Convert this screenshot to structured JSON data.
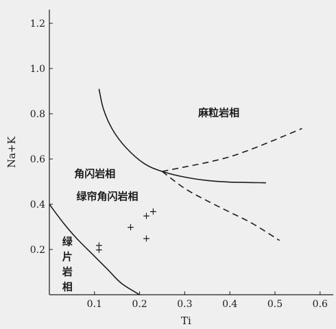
{
  "chart_data": {
    "type": "line",
    "xlabel": "Ti",
    "ylabel": "Na+K",
    "xlim": [
      0,
      0.6
    ],
    "ylim": [
      0,
      1.25
    ],
    "x_ticks": [
      "0.1",
      "0.2",
      "0.3",
      "0.4",
      "0.5",
      "0.6"
    ],
    "y_ticks": [
      "0.2",
      "0.4",
      "0.6",
      "0.8",
      "1.0",
      "1.2"
    ],
    "x_tick_values": [
      0.1,
      0.2,
      0.3,
      0.4,
      0.5,
      0.6
    ],
    "y_tick_values": [
      0.2,
      0.4,
      0.6,
      0.8,
      1.0,
      1.2
    ],
    "grid": false,
    "curves": [
      {
        "style": "solid",
        "points": [
          [
            0.0,
            0.4
          ],
          [
            0.03,
            0.32
          ],
          [
            0.06,
            0.25
          ],
          [
            0.1,
            0.17
          ],
          [
            0.13,
            0.11
          ],
          [
            0.16,
            0.05
          ],
          [
            0.2,
            0.0
          ]
        ]
      },
      {
        "style": "solid",
        "points": [
          [
            0.11,
            0.91
          ],
          [
            0.12,
            0.82
          ],
          [
            0.14,
            0.73
          ],
          [
            0.17,
            0.65
          ],
          [
            0.21,
            0.58
          ],
          [
            0.25,
            0.545
          ],
          [
            0.3,
            0.52
          ],
          [
            0.35,
            0.505
          ],
          [
            0.4,
            0.498
          ],
          [
            0.48,
            0.495
          ]
        ]
      },
      {
        "style": "dashed",
        "points": [
          [
            0.25,
            0.545
          ],
          [
            0.3,
            0.565
          ],
          [
            0.35,
            0.585
          ],
          [
            0.4,
            0.61
          ],
          [
            0.45,
            0.645
          ],
          [
            0.5,
            0.685
          ],
          [
            0.56,
            0.735
          ]
        ]
      },
      {
        "style": "dashed",
        "points": [
          [
            0.25,
            0.545
          ],
          [
            0.3,
            0.47
          ],
          [
            0.35,
            0.415
          ],
          [
            0.4,
            0.365
          ],
          [
            0.45,
            0.315
          ],
          [
            0.51,
            0.24
          ]
        ]
      }
    ],
    "points": [
      {
        "x": 0.11,
        "y": 0.22
      },
      {
        "x": 0.11,
        "y": 0.2
      },
      {
        "x": 0.18,
        "y": 0.3
      },
      {
        "x": 0.215,
        "y": 0.35
      },
      {
        "x": 0.23,
        "y": 0.37
      },
      {
        "x": 0.215,
        "y": 0.25
      }
    ],
    "point_marker": "+",
    "region_labels": [
      {
        "text": "麻粒岩相",
        "x": 0.33,
        "y": 0.79
      },
      {
        "text": "角闪岩相",
        "x": 0.055,
        "y": 0.52
      },
      {
        "text": "绿帘角闪岩相",
        "x": 0.06,
        "y": 0.42
      }
    ],
    "vertical_label": {
      "text": [
        "绿",
        "片",
        "岩",
        "相"
      ],
      "x": 0.04,
      "y_top": 0.22
    }
  }
}
